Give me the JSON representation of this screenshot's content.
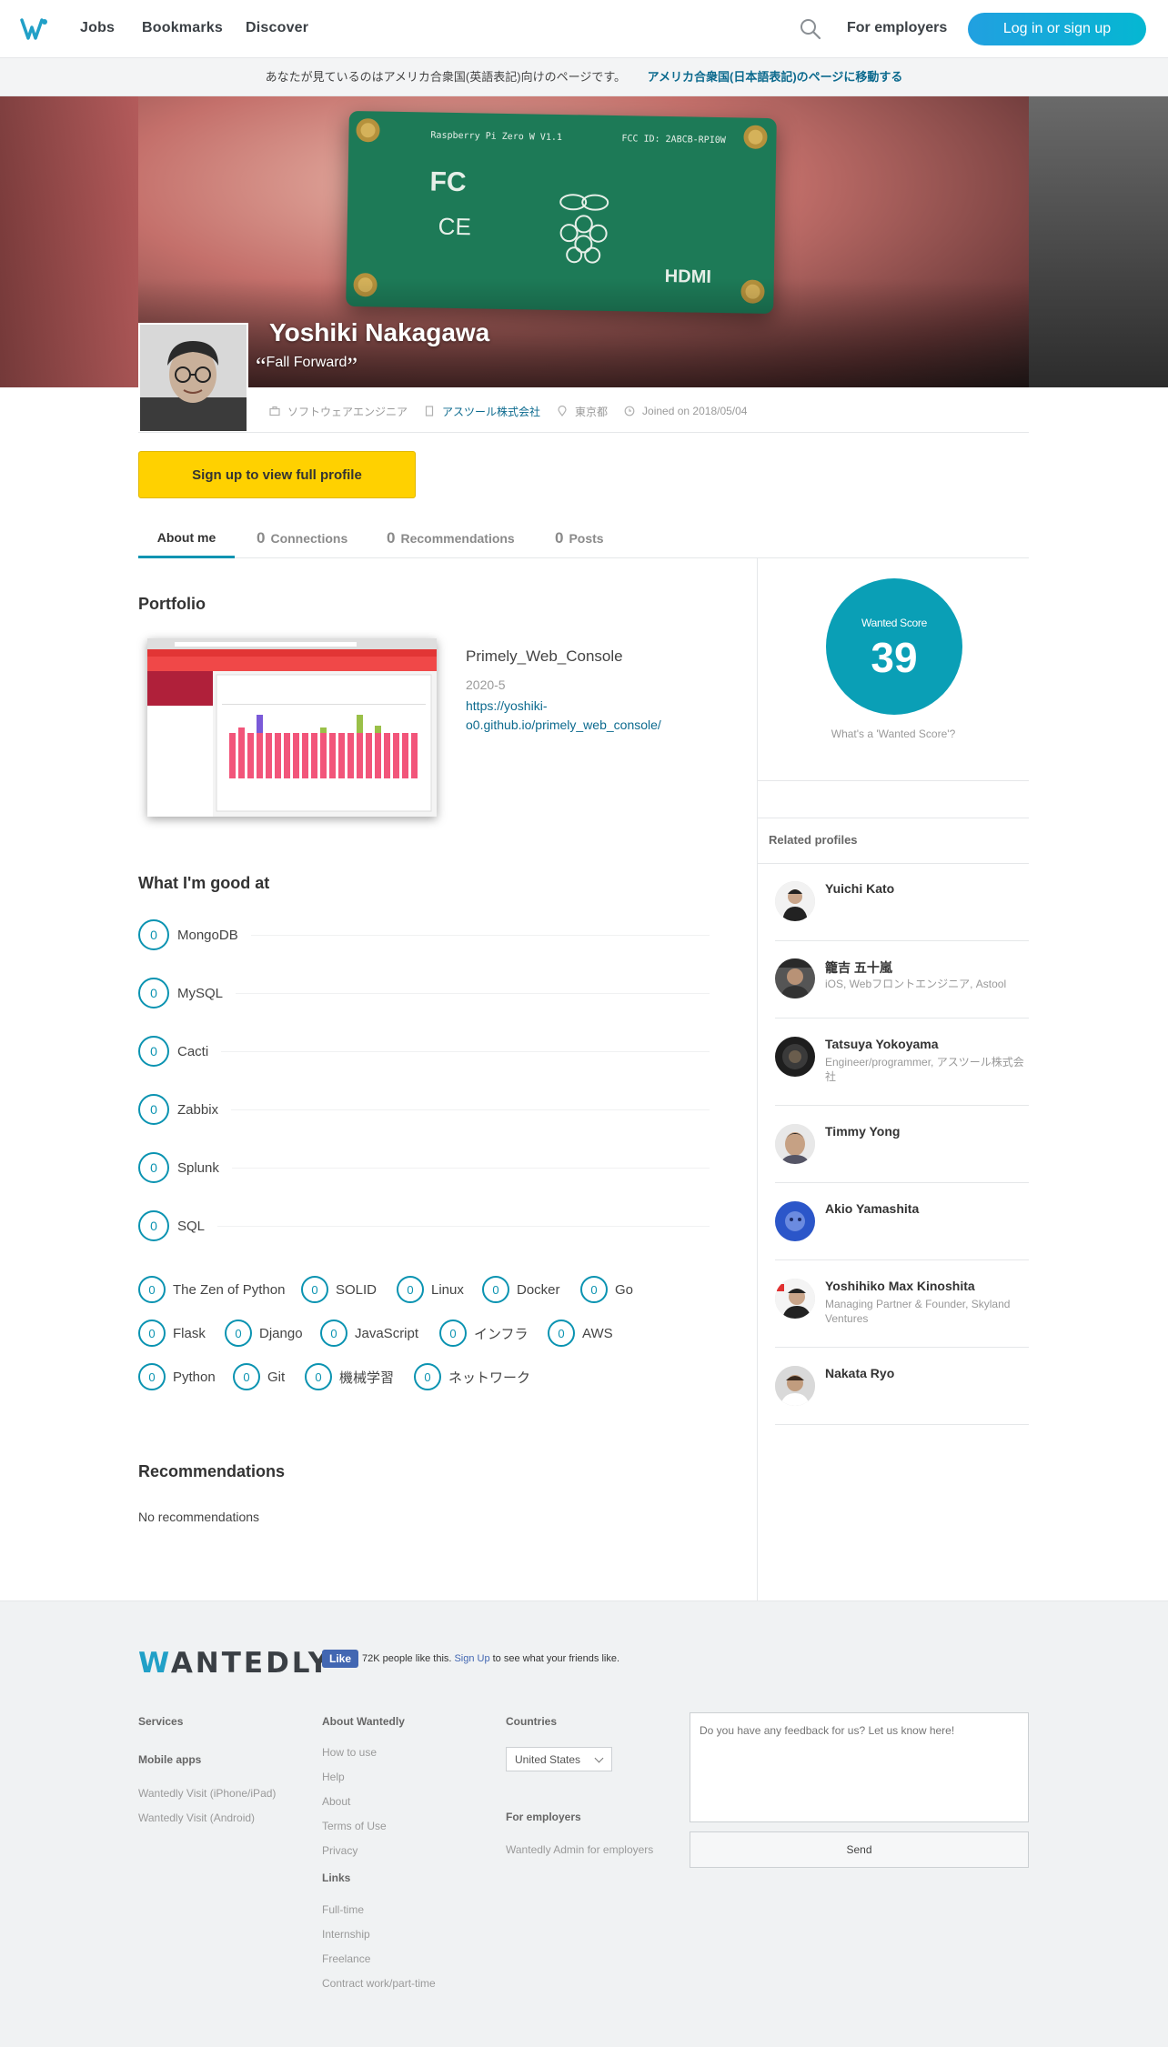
{
  "header": {
    "nav": [
      "Jobs",
      "Bookmarks",
      "Discover"
    ],
    "for_employers": "For employers",
    "login_label": "Log in or sign up",
    "brand_color": "#21a0e0"
  },
  "locale_banner": {
    "message": "あなたが見ているのはアメリカ合衆国(英語表記)向けのページです。",
    "link": "アメリカ合衆国(日本語表記)のページに移動する"
  },
  "profile": {
    "name": "Yoshiki Nakagawa",
    "motto": "Fall Forward",
    "role": "ソフトウェアエンジニア",
    "company": "アスツール株式会社",
    "location": "東京都",
    "joined": "Joined on 2018/05/04",
    "signup_cta": "Sign up to view full profile"
  },
  "tabs": [
    {
      "count": "",
      "label": "About me"
    },
    {
      "count": "0",
      "label": "Connections"
    },
    {
      "count": "0",
      "label": "Recommendations"
    },
    {
      "count": "0",
      "label": "Posts"
    }
  ],
  "portfolio": {
    "title": "Portfolio",
    "item": {
      "name": "Primely_Web_Console",
      "date": "2020-5",
      "url_line1": "https://yoshiki-",
      "url_line2": "o0.github.io/primely_web_console/"
    }
  },
  "skills": {
    "title": "What I'm good at",
    "rows": [
      {
        "count": "0",
        "name": "MongoDB"
      },
      {
        "count": "0",
        "name": "MySQL"
      },
      {
        "count": "0",
        "name": "Cacti"
      },
      {
        "count": "0",
        "name": "Zabbix"
      },
      {
        "count": "0",
        "name": "Splunk"
      },
      {
        "count": "0",
        "name": "SQL"
      }
    ],
    "chips": [
      {
        "count": "0",
        "name": "The Zen of Python"
      },
      {
        "count": "0",
        "name": "SOLID"
      },
      {
        "count": "0",
        "name": "Linux"
      },
      {
        "count": "0",
        "name": "Docker"
      },
      {
        "count": "0",
        "name": "Go"
      },
      {
        "count": "0",
        "name": "Flask"
      },
      {
        "count": "0",
        "name": "Django"
      },
      {
        "count": "0",
        "name": "JavaScript"
      },
      {
        "count": "0",
        "name": "インフラ"
      },
      {
        "count": "0",
        "name": "AWS"
      },
      {
        "count": "0",
        "name": "Python"
      },
      {
        "count": "0",
        "name": "Git"
      },
      {
        "count": "0",
        "name": "機械学習"
      },
      {
        "count": "0",
        "name": "ネットワーク"
      }
    ]
  },
  "recommendations": {
    "title": "Recommendations",
    "empty": "No recommendations"
  },
  "score": {
    "label": "Wanted Score",
    "value": "39",
    "help": "What's a 'Wanted Score'?",
    "color": "#0a9fb6"
  },
  "related": {
    "title": "Related profiles",
    "items": [
      {
        "name": "Yuichi Kato",
        "desc": ""
      },
      {
        "name": "籠吉 五十嵐",
        "desc": "iOS, Webフロントエンジニア, Astool"
      },
      {
        "name": "Tatsuya Yokoyama",
        "desc": "Engineer/programmer, アスツール株式会社"
      },
      {
        "name": "Timmy Yong",
        "desc": ""
      },
      {
        "name": "Akio Yamashita",
        "desc": ""
      },
      {
        "name": "Yoshihiko Max Kinoshita",
        "desc": "Managing Partner & Founder, Skyland Ventures"
      },
      {
        "name": "Nakata Ryo",
        "desc": ""
      }
    ]
  },
  "footer": {
    "logo": "WANTEDLY",
    "fb_like": "Like",
    "fb_count": "72K people like this.",
    "fb_signup": "Sign Up",
    "fb_tail": "to see what your friends like.",
    "services_title": "Services",
    "mobile_apps_title": "Mobile apps",
    "mobile_apps": [
      "Wantedly Visit (iPhone/iPad)",
      "Wantedly Visit (Android)"
    ],
    "about_title": "About Wantedly",
    "about_links": [
      "How to use",
      "Help",
      "About",
      "Terms of Use",
      "Privacy"
    ],
    "links_title": "Links",
    "links": [
      "Full-time",
      "Internship",
      "Freelance",
      "Contract work/part-time"
    ],
    "countries_title": "Countries",
    "country_selected": "United States",
    "employers_title": "For employers",
    "employers_link": "Wantedly Admin for employers",
    "feedback_placeholder": "Do you have any feedback for us? Let us know here!",
    "send_label": "Send"
  }
}
